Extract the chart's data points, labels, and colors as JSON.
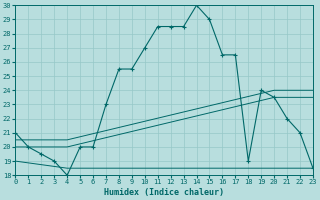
{
  "title": "",
  "xlabel": "Humidex (Indice chaleur)",
  "xlim": [
    0,
    23
  ],
  "ylim": [
    18,
    30
  ],
  "yticks": [
    18,
    19,
    20,
    21,
    22,
    23,
    24,
    25,
    26,
    27,
    28,
    29,
    30
  ],
  "xticks": [
    0,
    1,
    2,
    3,
    4,
    5,
    6,
    7,
    8,
    9,
    10,
    11,
    12,
    13,
    14,
    15,
    16,
    17,
    18,
    19,
    20,
    21,
    22,
    23
  ],
  "bg_color": "#b8dede",
  "grid_color": "#96c8c8",
  "line_color": "#006868",
  "series1_x": [
    0,
    1,
    2,
    3,
    4,
    5,
    6,
    7,
    8,
    9,
    10,
    11,
    12,
    13,
    14,
    15,
    16,
    17,
    18,
    19,
    20,
    21,
    22,
    23
  ],
  "series1_y": [
    21,
    20,
    19.5,
    19,
    18,
    20,
    20,
    23,
    25.5,
    25.5,
    27,
    28.5,
    28.5,
    28.5,
    30,
    29,
    26.5,
    26.5,
    19,
    24,
    23.5,
    22,
    21,
    18.5
  ],
  "series2_x": [
    0,
    4,
    23
  ],
  "series2_y": [
    19,
    18.5,
    18.5
  ],
  "series3_x": [
    0,
    4,
    20,
    23
  ],
  "series3_y": [
    20,
    20,
    23.5,
    23.5
  ],
  "series4_x": [
    0,
    4,
    20,
    23
  ],
  "series4_y": [
    20.5,
    20.5,
    24,
    24
  ]
}
